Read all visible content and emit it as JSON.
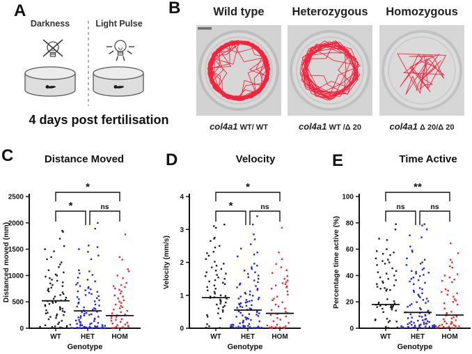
{
  "panel_a": {
    "label": "A",
    "darkness_label": "Darkness",
    "light_label": "Light Pulse",
    "caption": "4 days post fertilisation"
  },
  "panel_b": {
    "label": "B",
    "trace_color": "#f5233c",
    "columns": [
      {
        "title": "Wild type",
        "gene": "col4a1",
        "allele": " WT/ WT",
        "trace": "dense-ring"
      },
      {
        "title": "Heterozygous",
        "gene": "col4a1",
        "allele": " WT /Δ 20",
        "trace": "medium-ring"
      },
      {
        "title": "Homozygous",
        "gene": "col4a1",
        "allele": " Δ 20/Δ 20",
        "trace": "sparse-paths"
      }
    ]
  },
  "chart_data": [
    {
      "type": "scatter",
      "panel": "C",
      "title": "Distance Moved",
      "xlabel": "Genotype",
      "ylabel": "Distanced moved (mm)",
      "ylim": [
        0,
        2500
      ],
      "yticks": [
        0,
        500,
        1000,
        1500,
        2000,
        2500
      ],
      "categories": [
        "WT",
        "HET",
        "HOM"
      ],
      "colors": [
        "#1b1b1b",
        "#1f1fe8",
        "#ee2525"
      ],
      "medians": [
        520,
        330,
        240
      ],
      "comparisons": [
        {
          "a": "WT",
          "b": "HOM",
          "label": "*"
        },
        {
          "a": "WT",
          "b": "HET",
          "label": "*"
        },
        {
          "a": "HET",
          "b": "HOM",
          "label": "ns"
        }
      ],
      "series": [
        {
          "name": "WT",
          "values": [
            1850,
            1830,
            1700,
            1560,
            1500,
            1460,
            1350,
            1310,
            1250,
            1210,
            1160,
            1100,
            1060,
            1020,
            1000,
            980,
            950,
            920,
            900,
            870,
            850,
            820,
            800,
            770,
            750,
            720,
            700,
            680,
            650,
            630,
            600,
            580,
            560,
            540,
            525,
            515,
            505,
            495,
            480,
            460,
            440,
            420,
            400,
            385,
            370,
            355,
            340,
            325,
            310,
            295,
            280,
            265,
            250,
            235,
            215,
            195,
            170,
            140,
            110,
            80,
            55,
            42,
            35,
            28,
            22,
            16,
            10,
            6,
            3
          ]
        },
        {
          "name": "HET",
          "values": [
            2000,
            1890,
            1570,
            1540,
            1500,
            1450,
            1380,
            1310,
            1100,
            1080,
            1040,
            1010,
            960,
            920,
            890,
            860,
            830,
            800,
            780,
            760,
            740,
            720,
            700,
            690,
            670,
            650,
            630,
            610,
            590,
            570,
            550,
            530,
            510,
            490,
            470,
            450,
            430,
            410,
            395,
            380,
            365,
            350,
            338,
            326,
            314,
            302,
            290,
            278,
            266,
            254,
            242,
            230,
            218,
            206,
            194,
            182,
            170,
            158,
            146,
            134,
            122,
            110,
            100,
            92,
            85,
            78,
            72,
            66,
            60,
            55,
            50,
            45,
            40,
            36,
            32,
            28,
            25,
            22,
            19,
            16,
            14,
            12,
            10,
            8,
            7,
            6,
            5,
            4,
            3,
            3,
            2,
            2,
            1,
            1,
            1
          ]
        },
        {
          "name": "HOM",
          "values": [
            1780,
            1350,
            1300,
            1120,
            1080,
            1000,
            950,
            860,
            820,
            800,
            780,
            755,
            730,
            700,
            660,
            625,
            600,
            565,
            530,
            505,
            480,
            450,
            425,
            400,
            378,
            355,
            330,
            305,
            283,
            262,
            245,
            228,
            210,
            192,
            175,
            158,
            140,
            122,
            105,
            88,
            72,
            58,
            45,
            35,
            26,
            18,
            12,
            8,
            5,
            3
          ]
        }
      ]
    },
    {
      "type": "scatter",
      "panel": "D",
      "title": "Velocity",
      "xlabel": "Genotype",
      "ylabel": "Velocity (mm/s)",
      "ylim": [
        0,
        4
      ],
      "yticks": [
        0,
        1,
        2,
        3,
        4
      ],
      "categories": [
        "WT",
        "HET",
        "HOM"
      ],
      "colors": [
        "#1b1b1b",
        "#1f1fe8",
        "#ee2525"
      ],
      "medians": [
        0.93,
        0.55,
        0.45
      ],
      "comparisons": [
        {
          "a": "WT",
          "b": "HOM",
          "label": "*"
        },
        {
          "a": "WT",
          "b": "HET",
          "label": "*"
        },
        {
          "a": "HET",
          "b": "HOM",
          "label": "ns"
        }
      ],
      "series": [
        {
          "name": "WT",
          "values": [
            3.15,
            3.1,
            3.05,
            2.75,
            2.72,
            2.65,
            2.5,
            2.45,
            2.32,
            2.28,
            2.2,
            2.1,
            2.02,
            1.96,
            1.9,
            1.85,
            1.8,
            1.75,
            1.7,
            1.66,
            1.62,
            1.58,
            1.54,
            1.5,
            1.46,
            1.42,
            1.38,
            1.34,
            1.3,
            1.25,
            1.2,
            1.15,
            1.1,
            1.05,
            1.0,
            0.98,
            0.96,
            0.94,
            0.92,
            0.9,
            0.87,
            0.84,
            0.81,
            0.78,
            0.75,
            0.72,
            0.68,
            0.64,
            0.6,
            0.55,
            0.5,
            0.45,
            0.4,
            0.35,
            0.3,
            0.12,
            0.06,
            0.03,
            0.02,
            0.01
          ]
        },
        {
          "name": "HET",
          "values": [
            3.4,
            3.15,
            2.85,
            2.7,
            2.55,
            2.42,
            2.3,
            2.24,
            2.18,
            1.96,
            1.9,
            1.85,
            1.8,
            1.75,
            1.7,
            1.65,
            1.6,
            1.55,
            1.5,
            1.45,
            1.4,
            1.36,
            1.32,
            1.28,
            1.24,
            1.2,
            1.16,
            1.12,
            1.08,
            1.05,
            1.02,
            0.99,
            0.96,
            0.93,
            0.9,
            0.88,
            0.86,
            0.84,
            0.82,
            0.8,
            0.78,
            0.76,
            0.74,
            0.72,
            0.7,
            0.68,
            0.66,
            0.64,
            0.62,
            0.6,
            0.58,
            0.56,
            0.55,
            0.53,
            0.51,
            0.49,
            0.47,
            0.45,
            0.43,
            0.41,
            0.39,
            0.37,
            0.35,
            0.33,
            0.31,
            0.29,
            0.27,
            0.25,
            0.23,
            0.21,
            0.19,
            0.17,
            0.15,
            0.13,
            0.11,
            0.1,
            0.09,
            0.08,
            0.07,
            0.06,
            0.05,
            0.05,
            0.04,
            0.04,
            0.03,
            0.03,
            0.02,
            0.02,
            0.02,
            0.01,
            0.01,
            0.01,
            0.01,
            0.01,
            0.01
          ]
        },
        {
          "name": "HOM",
          "values": [
            3.05,
            2.3,
            2.1,
            1.95,
            1.85,
            1.76,
            1.68,
            1.58,
            1.5,
            1.45,
            1.4,
            1.37,
            1.34,
            1.3,
            1.27,
            1.24,
            1.2,
            1.12,
            1.02,
            0.96,
            0.9,
            0.85,
            0.79,
            0.72,
            0.66,
            0.6,
            0.55,
            0.5,
            0.46,
            0.43,
            0.4,
            0.36,
            0.31,
            0.26,
            0.21,
            0.16,
            0.11,
            0.08,
            0.06,
            0.04,
            0.03,
            0.03,
            0.02,
            0.02,
            0.01,
            0.01,
            0.01,
            0.01,
            0.01,
            0.01
          ]
        }
      ]
    },
    {
      "type": "scatter",
      "panel": "E",
      "title": "Time Active",
      "xlabel": "Genotype",
      "ylabel": "Percentage time active (%)",
      "ylim": [
        0,
        100
      ],
      "yticks": [
        0,
        20,
        40,
        60,
        80,
        100
      ],
      "categories": [
        "WT",
        "HET",
        "HOM"
      ],
      "colors": [
        "#1b1b1b",
        "#1f1fe8",
        "#ee2525"
      ],
      "medians": [
        18,
        12,
        10
      ],
      "comparisons": [
        {
          "a": "WT",
          "b": "HOM",
          "label": "**"
        },
        {
          "a": "WT",
          "b": "HET",
          "label": "ns"
        },
        {
          "a": "HET",
          "b": "HOM",
          "label": "ns"
        }
      ],
      "series": [
        {
          "name": "WT",
          "values": [
            79,
            75,
            68,
            67,
            60,
            58.5,
            57.5,
            56.5,
            55.5,
            53,
            52,
            51,
            50,
            49,
            48,
            45.5,
            43.5,
            42.5,
            41.5,
            40,
            38.5,
            37.5,
            36.5,
            35.5,
            34.5,
            33.5,
            32.5,
            31.5,
            30.5,
            30,
            29.5,
            29,
            28.5,
            22,
            20.5,
            19.5,
            18.8,
            18.3,
            17.9,
            17.6,
            17.3,
            17,
            16.7,
            16.4,
            16.1,
            15.8,
            15.3,
            14.8,
            14.2,
            13.4,
            12.3,
            7.2,
            6.6,
            6.1,
            5.6,
            5.1,
            4.6,
            1.1,
            0.6,
            0.3
          ]
        },
        {
          "name": "HET",
          "values": [
            79,
            78,
            75,
            70.5,
            69,
            62,
            59,
            58,
            53,
            52,
            50,
            49,
            48,
            45.5,
            44.5,
            43.5,
            42.8,
            42.2,
            41.5,
            40.5,
            39.5,
            38.5,
            37.5,
            36.5,
            35.5,
            34.5,
            33.5,
            30.5,
            29.5,
            28.5,
            27.5,
            26.5,
            25.5,
            24.5,
            23.5,
            22.5,
            21.5,
            20.5,
            19.8,
            19.2,
            18.3,
            17.3,
            16.3,
            15.3,
            14.3,
            13.3,
            12.7,
            12.1,
            11.6,
            11.1,
            10.6,
            10.1,
            9.6,
            9.1,
            8.6,
            8.1,
            7.6,
            7.1,
            6.6,
            6.1,
            5.7,
            5.3,
            5,
            4.7,
            4.4,
            4.1,
            3.9,
            3.6,
            3.4,
            3.2,
            3,
            2.8,
            2.6,
            2.4,
            2.2,
            2,
            1.9,
            1.7,
            1.6,
            1.4,
            1.3,
            1.2,
            1.1,
            1,
            0.9,
            0.8,
            0.7,
            0.6,
            0.5,
            0.45,
            0.4,
            0.3,
            0.25,
            0.2,
            0.1
          ]
        },
        {
          "name": "HOM",
          "values": [
            64.5,
            57,
            52,
            50,
            47,
            46,
            41,
            40,
            38.5,
            37,
            36,
            35,
            29.5,
            28.5,
            27.5,
            26.5,
            25.5,
            24,
            22,
            21,
            20,
            19,
            18,
            15,
            12.5,
            11.5,
            10.5,
            9.6,
            8.9,
            8.3,
            7.4,
            6.8,
            6.1,
            5.2,
            4.7,
            4.1,
            3.6,
            3.1,
            2.7,
            2.3,
            2,
            1.7,
            1.5,
            1.2,
            1,
            0.8,
            0.5,
            0.4,
            0.3,
            0.2
          ]
        }
      ]
    }
  ]
}
